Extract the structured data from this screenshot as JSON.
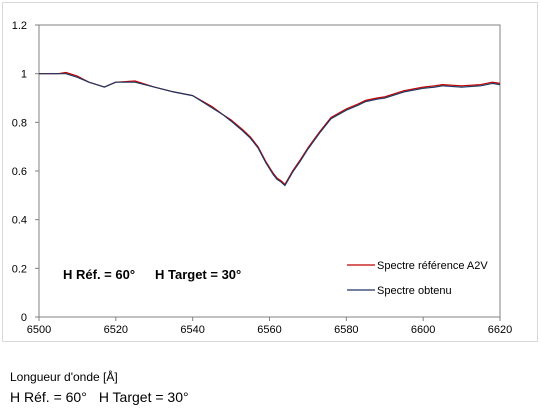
{
  "chart_data": {
    "type": "line",
    "title": "",
    "xlabel": "Longueur d'onde [Å]",
    "ylabel": "",
    "xlim": [
      6500,
      6620
    ],
    "ylim": [
      0,
      1.2
    ],
    "x_ticks": [
      6500,
      6520,
      6540,
      6560,
      6580,
      6600,
      6620
    ],
    "y_ticks": [
      0,
      0.2,
      0.4,
      0.6,
      0.8,
      1,
      1.2
    ],
    "x_tick_labels": [
      "6500",
      "6520",
      "6540",
      "6560",
      "6580",
      "6600",
      "6620"
    ],
    "y_tick_labels": [
      "0",
      "0.2",
      "0.4",
      "0.6",
      "0.8",
      "1",
      "1.2"
    ],
    "grid": false,
    "legend_position": "bottom-right",
    "annotation": {
      "parts": [
        "H Réf. = 60°",
        "H Target = 30°"
      ]
    },
    "series": [
      {
        "name": "Spectre référence A2V",
        "color": "#c00000",
        "x": [
          6500,
          6505,
          6507,
          6510,
          6513,
          6516,
          6517,
          6520,
          6525,
          6530,
          6535,
          6540,
          6545,
          6548,
          6550,
          6553,
          6555,
          6557,
          6559,
          6561,
          6562,
          6563,
          6564,
          6566,
          6568,
          6570,
          6573,
          6576,
          6580,
          6583,
          6585,
          6588,
          6590,
          6595,
          6600,
          6603,
          6605,
          6610,
          6615,
          6618,
          6620
        ],
        "y": [
          1.0,
          1.0,
          1.005,
          0.99,
          0.965,
          0.95,
          0.945,
          0.965,
          0.97,
          0.945,
          0.925,
          0.91,
          0.865,
          0.83,
          0.81,
          0.77,
          0.74,
          0.7,
          0.64,
          0.59,
          0.57,
          0.56,
          0.545,
          0.6,
          0.645,
          0.695,
          0.76,
          0.82,
          0.855,
          0.875,
          0.89,
          0.9,
          0.905,
          0.93,
          0.945,
          0.95,
          0.955,
          0.95,
          0.955,
          0.965,
          0.96
        ]
      },
      {
        "name": "Spectre obtenu",
        "color": "#1f3864",
        "x": [
          6500,
          6505,
          6507,
          6510,
          6513,
          6516,
          6517,
          6520,
          6525,
          6530,
          6535,
          6540,
          6545,
          6548,
          6550,
          6553,
          6555,
          6557,
          6559,
          6561,
          6562,
          6563,
          6564,
          6566,
          6568,
          6570,
          6573,
          6576,
          6580,
          6583,
          6585,
          6588,
          6590,
          6595,
          6600,
          6603,
          6605,
          6610,
          6615,
          6618,
          6620
        ],
        "y": [
          1.0,
          1.0,
          1.0,
          0.985,
          0.965,
          0.95,
          0.945,
          0.965,
          0.965,
          0.945,
          0.925,
          0.91,
          0.86,
          0.83,
          0.805,
          0.765,
          0.735,
          0.695,
          0.635,
          0.585,
          0.565,
          0.555,
          0.54,
          0.595,
          0.64,
          0.69,
          0.755,
          0.815,
          0.85,
          0.87,
          0.885,
          0.895,
          0.9,
          0.925,
          0.94,
          0.945,
          0.95,
          0.945,
          0.95,
          0.96,
          0.955
        ]
      }
    ]
  },
  "footer": {
    "xlabel": "Longueur d'onde [Å]",
    "note_parts": [
      "H Réf. = 60°",
      "H Target = 30°"
    ]
  }
}
